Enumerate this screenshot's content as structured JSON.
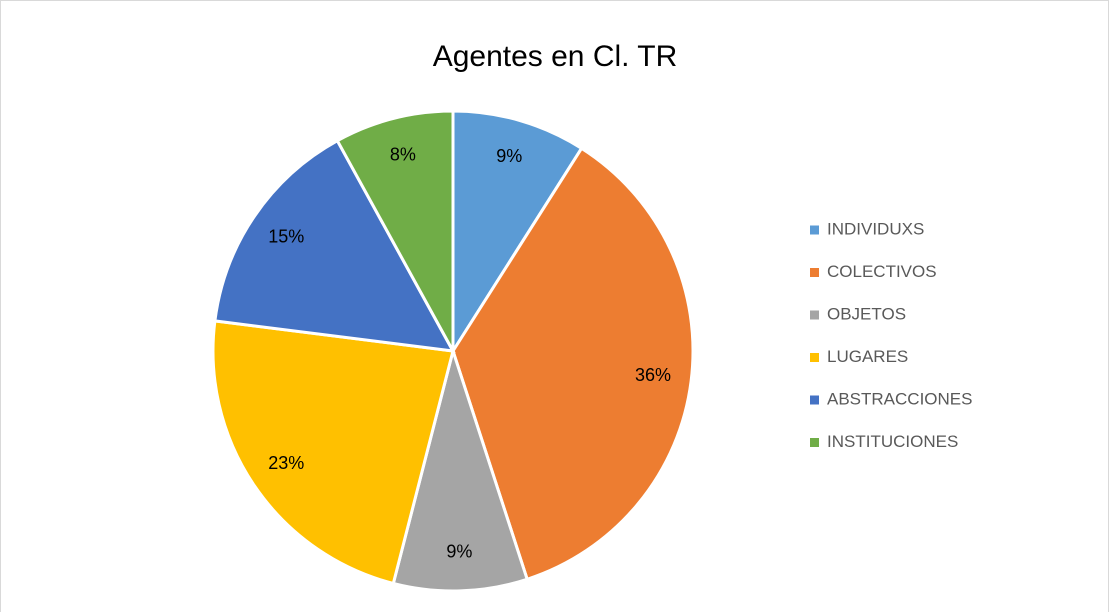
{
  "chart_data": {
    "type": "pie",
    "title": "Agentes en Cl. TR",
    "categories": [
      "INDIVIDUXS",
      "COLECTIVOS",
      "OBJETOS",
      "LUGARES",
      "ABSTRACCIONES",
      "INSTITUCIONES"
    ],
    "values": [
      9,
      36,
      9,
      23,
      15,
      8
    ],
    "value_labels": [
      "9%",
      "36%",
      "9%",
      "23%",
      "15%",
      "8%"
    ],
    "colors": [
      "#5b9bd5",
      "#ed7d31",
      "#a5a5a5",
      "#ffc000",
      "#4472c4",
      "#70ad47"
    ],
    "legend": "right"
  }
}
